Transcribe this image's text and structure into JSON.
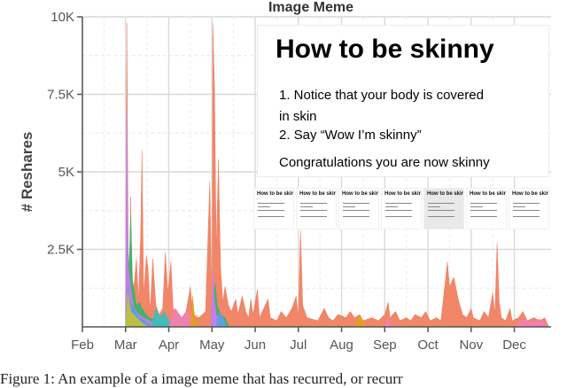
{
  "chart_data": {
    "type": "area",
    "title": "Image Meme",
    "ylabel": "# Reshares",
    "xlabel": "",
    "ylim": [
      0,
      10000
    ],
    "y_ticks": [
      {
        "value": 10000,
        "label": "10K"
      },
      {
        "value": 7500,
        "label": "7.5K"
      },
      {
        "value": 5000,
        "label": "5K"
      },
      {
        "value": 2500,
        "label": "2.5K"
      }
    ],
    "x_ticks": [
      {
        "month": 0,
        "label": "Feb"
      },
      {
        "month": 1,
        "label": "Mar"
      },
      {
        "month": 2,
        "label": "Apr"
      },
      {
        "month": 3,
        "label": "May"
      },
      {
        "month": 4,
        "label": "Jun"
      },
      {
        "month": 5,
        "label": "Jul"
      },
      {
        "month": 6,
        "label": "Aug"
      },
      {
        "month": 7,
        "label": "Sep"
      },
      {
        "month": 8,
        "label": "Oct"
      },
      {
        "month": 9,
        "label": "Nov"
      },
      {
        "month": 10,
        "label": "Dec"
      }
    ],
    "xlim": [
      0,
      10.85
    ],
    "grid": true,
    "series": [
      {
        "color": "#f08060",
        "points": [
          [
            1.0,
            0
          ],
          [
            1.03,
            9800
          ],
          [
            1.06,
            2500
          ],
          [
            1.09,
            1600
          ],
          [
            1.12,
            4200
          ],
          [
            1.15,
            1000
          ],
          [
            1.2,
            1400
          ],
          [
            1.25,
            2200
          ],
          [
            1.3,
            900
          ],
          [
            1.35,
            3000
          ],
          [
            1.38,
            5700
          ],
          [
            1.42,
            1000
          ],
          [
            1.48,
            2300
          ],
          [
            1.52,
            1900
          ],
          [
            1.57,
            500
          ],
          [
            1.63,
            2200
          ],
          [
            1.7,
            700
          ],
          [
            1.78,
            400
          ],
          [
            1.86,
            600
          ],
          [
            1.92,
            2400
          ],
          [
            1.98,
            1100
          ],
          [
            2.05,
            2100
          ],
          [
            2.1,
            600
          ],
          [
            2.2,
            400
          ],
          [
            2.3,
            300
          ],
          [
            2.4,
            500
          ],
          [
            2.5,
            1300
          ],
          [
            2.55,
            400
          ],
          [
            2.7,
            300
          ],
          [
            2.85,
            500
          ],
          [
            2.95,
            4700
          ],
          [
            3.0,
            500
          ],
          [
            3.02,
            9800
          ],
          [
            3.06,
            7600
          ],
          [
            3.1,
            2500
          ],
          [
            3.15,
            5400
          ],
          [
            3.2,
            1900
          ],
          [
            3.25,
            800
          ],
          [
            3.3,
            1300
          ],
          [
            3.38,
            700
          ],
          [
            3.45,
            500
          ],
          [
            3.55,
            900
          ],
          [
            3.6,
            400
          ],
          [
            3.7,
            1000
          ],
          [
            3.78,
            500
          ],
          [
            3.85,
            300
          ],
          [
            3.9,
            900
          ],
          [
            3.95,
            400
          ],
          [
            4.05,
            1200
          ],
          [
            4.1,
            300
          ],
          [
            4.3,
            900
          ],
          [
            4.35,
            300
          ],
          [
            4.5,
            200
          ],
          [
            4.6,
            500
          ],
          [
            4.72,
            300
          ],
          [
            4.85,
            600
          ],
          [
            4.95,
            1000
          ],
          [
            5.0,
            300
          ],
          [
            5.05,
            3100
          ],
          [
            5.1,
            700
          ],
          [
            5.2,
            300
          ],
          [
            5.45,
            200
          ],
          [
            5.6,
            600
          ],
          [
            5.7,
            300
          ],
          [
            5.8,
            200
          ],
          [
            5.92,
            400
          ],
          [
            6.1,
            300
          ],
          [
            6.2,
            500
          ],
          [
            6.3,
            300
          ],
          [
            6.42,
            400
          ],
          [
            6.5,
            200
          ],
          [
            6.7,
            300
          ],
          [
            6.85,
            200
          ],
          [
            7.0,
            400
          ],
          [
            7.08,
            800
          ],
          [
            7.12,
            300
          ],
          [
            7.25,
            500
          ],
          [
            7.35,
            200
          ],
          [
            7.5,
            300
          ],
          [
            7.6,
            200
          ],
          [
            7.7,
            400
          ],
          [
            7.85,
            300
          ],
          [
            7.95,
            500
          ],
          [
            8.05,
            200
          ],
          [
            8.2,
            300
          ],
          [
            8.3,
            200
          ],
          [
            8.45,
            2100
          ],
          [
            8.5,
            1300
          ],
          [
            8.6,
            1600
          ],
          [
            8.7,
            900
          ],
          [
            8.8,
            400
          ],
          [
            8.9,
            300
          ],
          [
            9.0,
            600
          ],
          [
            9.05,
            300
          ],
          [
            9.2,
            200
          ],
          [
            9.3,
            500
          ],
          [
            9.4,
            300
          ],
          [
            9.5,
            1100
          ],
          [
            9.55,
            400
          ],
          [
            9.6,
            2700
          ],
          [
            9.65,
            800
          ],
          [
            9.7,
            300
          ],
          [
            9.8,
            200
          ],
          [
            9.9,
            600
          ],
          [
            9.95,
            200
          ],
          [
            10.1,
            300
          ],
          [
            10.2,
            500
          ],
          [
            10.3,
            200
          ],
          [
            10.45,
            300
          ],
          [
            10.6,
            200
          ],
          [
            10.7,
            300
          ],
          [
            10.8,
            0
          ]
        ]
      },
      {
        "color": "#3fb36b",
        "points": [
          [
            1.0,
            0
          ],
          [
            1.04,
            2800
          ],
          [
            1.08,
            1900
          ],
          [
            1.12,
            3600
          ],
          [
            1.16,
            1500
          ],
          [
            1.2,
            1200
          ],
          [
            1.25,
            700
          ],
          [
            1.32,
            800
          ],
          [
            1.38,
            600
          ],
          [
            1.45,
            450
          ],
          [
            1.55,
            300
          ],
          [
            1.65,
            250
          ],
          [
            1.8,
            150
          ],
          [
            2.0,
            0
          ]
        ]
      },
      {
        "color": "#c77cf2",
        "points": [
          [
            1.0,
            0
          ],
          [
            1.03,
            7000
          ],
          [
            1.06,
            2000
          ],
          [
            1.1,
            1500
          ],
          [
            1.15,
            900
          ],
          [
            1.2,
            600
          ],
          [
            1.3,
            400
          ],
          [
            1.4,
            300
          ],
          [
            1.55,
            200
          ],
          [
            1.7,
            100
          ],
          [
            1.9,
            0
          ]
        ]
      },
      {
        "color": "#5aa0e6",
        "points": [
          [
            1.0,
            0
          ],
          [
            1.05,
            1300
          ],
          [
            1.1,
            800
          ],
          [
            1.2,
            600
          ],
          [
            1.3,
            300
          ],
          [
            1.45,
            200
          ],
          [
            1.6,
            0
          ]
        ]
      },
      {
        "color": "#c2c13a",
        "points": [
          [
            1.0,
            0
          ],
          [
            1.05,
            1100
          ],
          [
            1.12,
            500
          ],
          [
            1.25,
            300
          ],
          [
            1.4,
            100
          ],
          [
            1.55,
            0
          ]
        ]
      },
      {
        "color": "#3bbfbf",
        "points": [
          [
            1.6,
            0
          ],
          [
            1.7,
            600
          ],
          [
            1.8,
            300
          ],
          [
            1.9,
            500
          ],
          [
            2.0,
            200
          ],
          [
            2.1,
            0
          ]
        ]
      },
      {
        "color": "#ef7fb0",
        "points": [
          [
            2.0,
            0
          ],
          [
            2.15,
            600
          ],
          [
            2.3,
            300
          ],
          [
            2.45,
            500
          ],
          [
            2.6,
            200
          ],
          [
            2.75,
            0
          ]
        ]
      },
      {
        "color": "#e0a020",
        "points": [
          [
            2.5,
            0
          ],
          [
            2.55,
            1000
          ],
          [
            2.6,
            300
          ],
          [
            2.7,
            0
          ]
        ]
      },
      {
        "color": "#3fb36b",
        "points": [
          [
            2.98,
            0
          ],
          [
            3.03,
            1000
          ],
          [
            3.08,
            1400
          ],
          [
            3.12,
            700
          ],
          [
            3.2,
            400
          ],
          [
            3.3,
            300
          ],
          [
            3.4,
            0
          ]
        ]
      },
      {
        "color": "#c77cf2",
        "points": [
          [
            2.98,
            0
          ],
          [
            3.02,
            1800
          ],
          [
            3.05,
            900
          ],
          [
            3.1,
            400
          ],
          [
            3.2,
            200
          ],
          [
            3.35,
            0
          ]
        ]
      },
      {
        "color": "#5aa0e6",
        "points": [
          [
            3.1,
            0
          ],
          [
            3.15,
            500
          ],
          [
            3.25,
            300
          ],
          [
            3.35,
            0
          ]
        ]
      },
      {
        "color": "#e0a020",
        "points": [
          [
            6.3,
            0
          ],
          [
            6.42,
            400
          ],
          [
            6.5,
            150
          ],
          [
            6.6,
            0
          ]
        ]
      },
      {
        "color": "#ef7fb0",
        "points": [
          [
            7.0,
            0
          ],
          [
            7.06,
            300
          ],
          [
            7.12,
            150
          ],
          [
            7.2,
            0
          ]
        ]
      },
      {
        "color": "#ef7fb0",
        "points": [
          [
            10.0,
            0
          ],
          [
            10.2,
            250
          ],
          [
            10.4,
            150
          ],
          [
            10.6,
            250
          ],
          [
            10.8,
            0
          ]
        ]
      }
    ]
  },
  "meme": {
    "heading": "How to be skinny",
    "line1": "1. Notice that your body is covered",
    "line2": "in skin",
    "line3": "2. Say “Wow I’m skinny”",
    "line4": "Congratulations you are now skinny"
  },
  "thumbnails": [
    {
      "title": "How to be skinny",
      "shaded": false
    },
    {
      "title": "How to be skinny",
      "shaded": false
    },
    {
      "title": "How to be skinny",
      "shaded": false
    },
    {
      "title": "How to be skinny",
      "shaded": false
    },
    {
      "title": "How to be skinny",
      "shaded": true
    },
    {
      "title": "How to be skinny",
      "shaded": false
    },
    {
      "title": "How to be skinny",
      "shaded": false
    }
  ],
  "caption": "Figure 1: An example of a image meme that has recurred, or recurr"
}
